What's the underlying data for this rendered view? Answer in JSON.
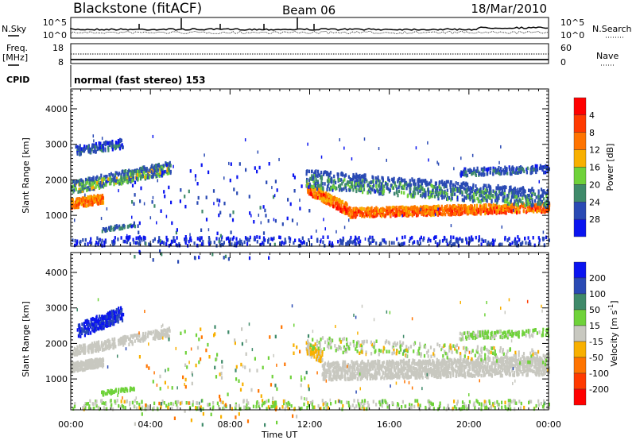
{
  "header": {
    "title": "Blackstone (fitACF)",
    "beam": "Beam 06",
    "date": "18/Mar/2010"
  },
  "nsky_panel": {
    "left_label": "N.Sky",
    "right_label": "N.Search",
    "left_ticks": [
      "10^5",
      "10^0"
    ],
    "right_ticks": [
      "10^5",
      "10^0"
    ]
  },
  "freq_panel": {
    "left_label_1": "Freq.",
    "left_label_2": "[MHz]",
    "right_label": "Nave",
    "left_ticks": [
      "18",
      "8"
    ],
    "right_ticks": [
      "60",
      "0"
    ]
  },
  "cpid": {
    "label": "CPID",
    "value": "normal (fast stereo) 153"
  },
  "chart_data": [
    {
      "type": "heatmap",
      "name": "power",
      "ylabel": "Slant Range [km]",
      "xlabel": "Time UT",
      "xlim": [
        0,
        24
      ],
      "ylim": [
        130,
        4560
      ],
      "yticks": [
        "1000",
        "2000",
        "3000",
        "4000"
      ],
      "ytick_values": [
        1000,
        2000,
        3000,
        4000
      ],
      "xticks": [
        "00:00",
        "04:00",
        "08:00",
        "12:00",
        "16:00",
        "20:00",
        "00:00"
      ],
      "xtick_values": [
        0,
        4,
        8,
        12,
        16,
        20,
        24
      ],
      "colorbar": {
        "label": "Power [dB]",
        "ticks": [
          "4",
          "8",
          "12",
          "16",
          "20",
          "24",
          "28"
        ],
        "colors": [
          "#0a14f0",
          "#2a4ab4",
          "#3f8a6a",
          "#6fd23a",
          "#f8b000",
          "#ff7400",
          "#ff3a00",
          "#ff0000"
        ],
        "range": [
          0,
          32
        ]
      },
      "regions": [
        {
          "t": [
            0,
            1.6
          ],
          "r0": [
            1250,
            1400
          ],
          "w": 250,
          "v": [
            18,
            28
          ],
          "n": 220
        },
        {
          "t": [
            0,
            5
          ],
          "r0": [
            1700,
            2250
          ],
          "w": 350,
          "v": [
            4,
            18
          ],
          "n": 420
        },
        {
          "t": [
            0.2,
            2.6
          ],
          "r0": [
            2750,
            2950
          ],
          "w": 250,
          "v": [
            3,
            10
          ],
          "n": 140
        },
        {
          "t": [
            1.5,
            3.2
          ],
          "r0": [
            550,
            700
          ],
          "w": 100,
          "v": [
            4,
            12
          ],
          "n": 50
        },
        {
          "t": [
            11.8,
            14
          ],
          "r0": [
            1700,
            1050
          ],
          "w": 300,
          "v": [
            16,
            30
          ],
          "n": 260
        },
        {
          "t": [
            14,
            24
          ],
          "r0": [
            1000,
            1150
          ],
          "w": 250,
          "v": [
            18,
            30
          ],
          "n": 900
        },
        {
          "t": [
            11.8,
            24
          ],
          "r0": [
            1900,
            1350
          ],
          "w": 500,
          "v": [
            4,
            14
          ],
          "n": 900
        },
        {
          "t": [
            19.5,
            24
          ],
          "r0": [
            2150,
            2250
          ],
          "w": 200,
          "v": [
            3,
            10
          ],
          "n": 180
        },
        {
          "t": [
            0,
            24
          ],
          "r0": [
            200,
            200
          ],
          "w": 250,
          "v": [
            2,
            8
          ],
          "n": 400
        },
        {
          "t": [
            3,
            12
          ],
          "r0": [
            500,
            500
          ],
          "w": 2800,
          "v": [
            2,
            10
          ],
          "n": 120
        }
      ]
    },
    {
      "type": "heatmap",
      "name": "velocity",
      "ylabel": "Slant Range [km]",
      "xlabel": "Time UT",
      "xlim": [
        0,
        24
      ],
      "ylim": [
        130,
        4560
      ],
      "yticks": [
        "1000",
        "2000",
        "3000",
        "4000"
      ],
      "ytick_values": [
        1000,
        2000,
        3000,
        4000
      ],
      "xticks": [
        "00:00",
        "04:00",
        "08:00",
        "12:00",
        "16:00",
        "20:00",
        "00:00"
      ],
      "xtick_values": [
        0,
        4,
        8,
        12,
        16,
        20,
        24
      ],
      "colorbar": {
        "label": "Velocity [m s-1]",
        "label_main": "Velocity [m s",
        "label_sup": "-1",
        "label_end": "]",
        "ticks": [
          "200",
          "100",
          "50",
          "15",
          "-15",
          "-50",
          "-100",
          "-200"
        ],
        "colors": [
          "#0a14f0",
          "#2a4ab4",
          "#3f8a6a",
          "#6fd23a",
          "#c8c8c0",
          "#f8b000",
          "#ff7400",
          "#ff3a00",
          "#ff0000"
        ],
        "range": [
          250,
          -250
        ]
      },
      "regions": [
        {
          "t": [
            0,
            1.6
          ],
          "r0": [
            1250,
            1400
          ],
          "w": 250,
          "v": [
            -10,
            10
          ],
          "n": 220
        },
        {
          "t": [
            0.3,
            2.6
          ],
          "r0": [
            2250,
            2750
          ],
          "w": 400,
          "v": [
            -250,
            -150
          ],
          "n": 260
        },
        {
          "t": [
            0,
            5
          ],
          "r0": [
            1700,
            2250
          ],
          "w": 250,
          "v": [
            -12,
            12
          ],
          "n": 300
        },
        {
          "t": [
            1.5,
            3.2
          ],
          "r0": [
            550,
            700
          ],
          "w": 100,
          "v": [
            -80,
            -30
          ],
          "n": 50
        },
        {
          "t": [
            11.8,
            12.6
          ],
          "r0": [
            1800,
            1500
          ],
          "w": 350,
          "v": [
            20,
            45
          ],
          "n": 80
        },
        {
          "t": [
            12.6,
            24
          ],
          "r0": [
            1100,
            1250
          ],
          "w": 500,
          "v": [
            -14,
            14
          ],
          "n": 1400
        },
        {
          "t": [
            11.8,
            24
          ],
          "r0": [
            1900,
            1500
          ],
          "w": 400,
          "v": [
            -60,
            40
          ],
          "n": 300
        },
        {
          "t": [
            19.5,
            24
          ],
          "r0": [
            2150,
            2250
          ],
          "w": 200,
          "v": [
            -80,
            -10
          ],
          "n": 150
        },
        {
          "t": [
            0,
            24
          ],
          "r0": [
            200,
            200
          ],
          "w": 250,
          "v": [
            -80,
            40
          ],
          "n": 400
        },
        {
          "t": [
            3,
            12
          ],
          "r0": [
            500,
            500
          ],
          "w": 2800,
          "v": [
            -120,
            120
          ],
          "n": 120
        }
      ]
    }
  ]
}
